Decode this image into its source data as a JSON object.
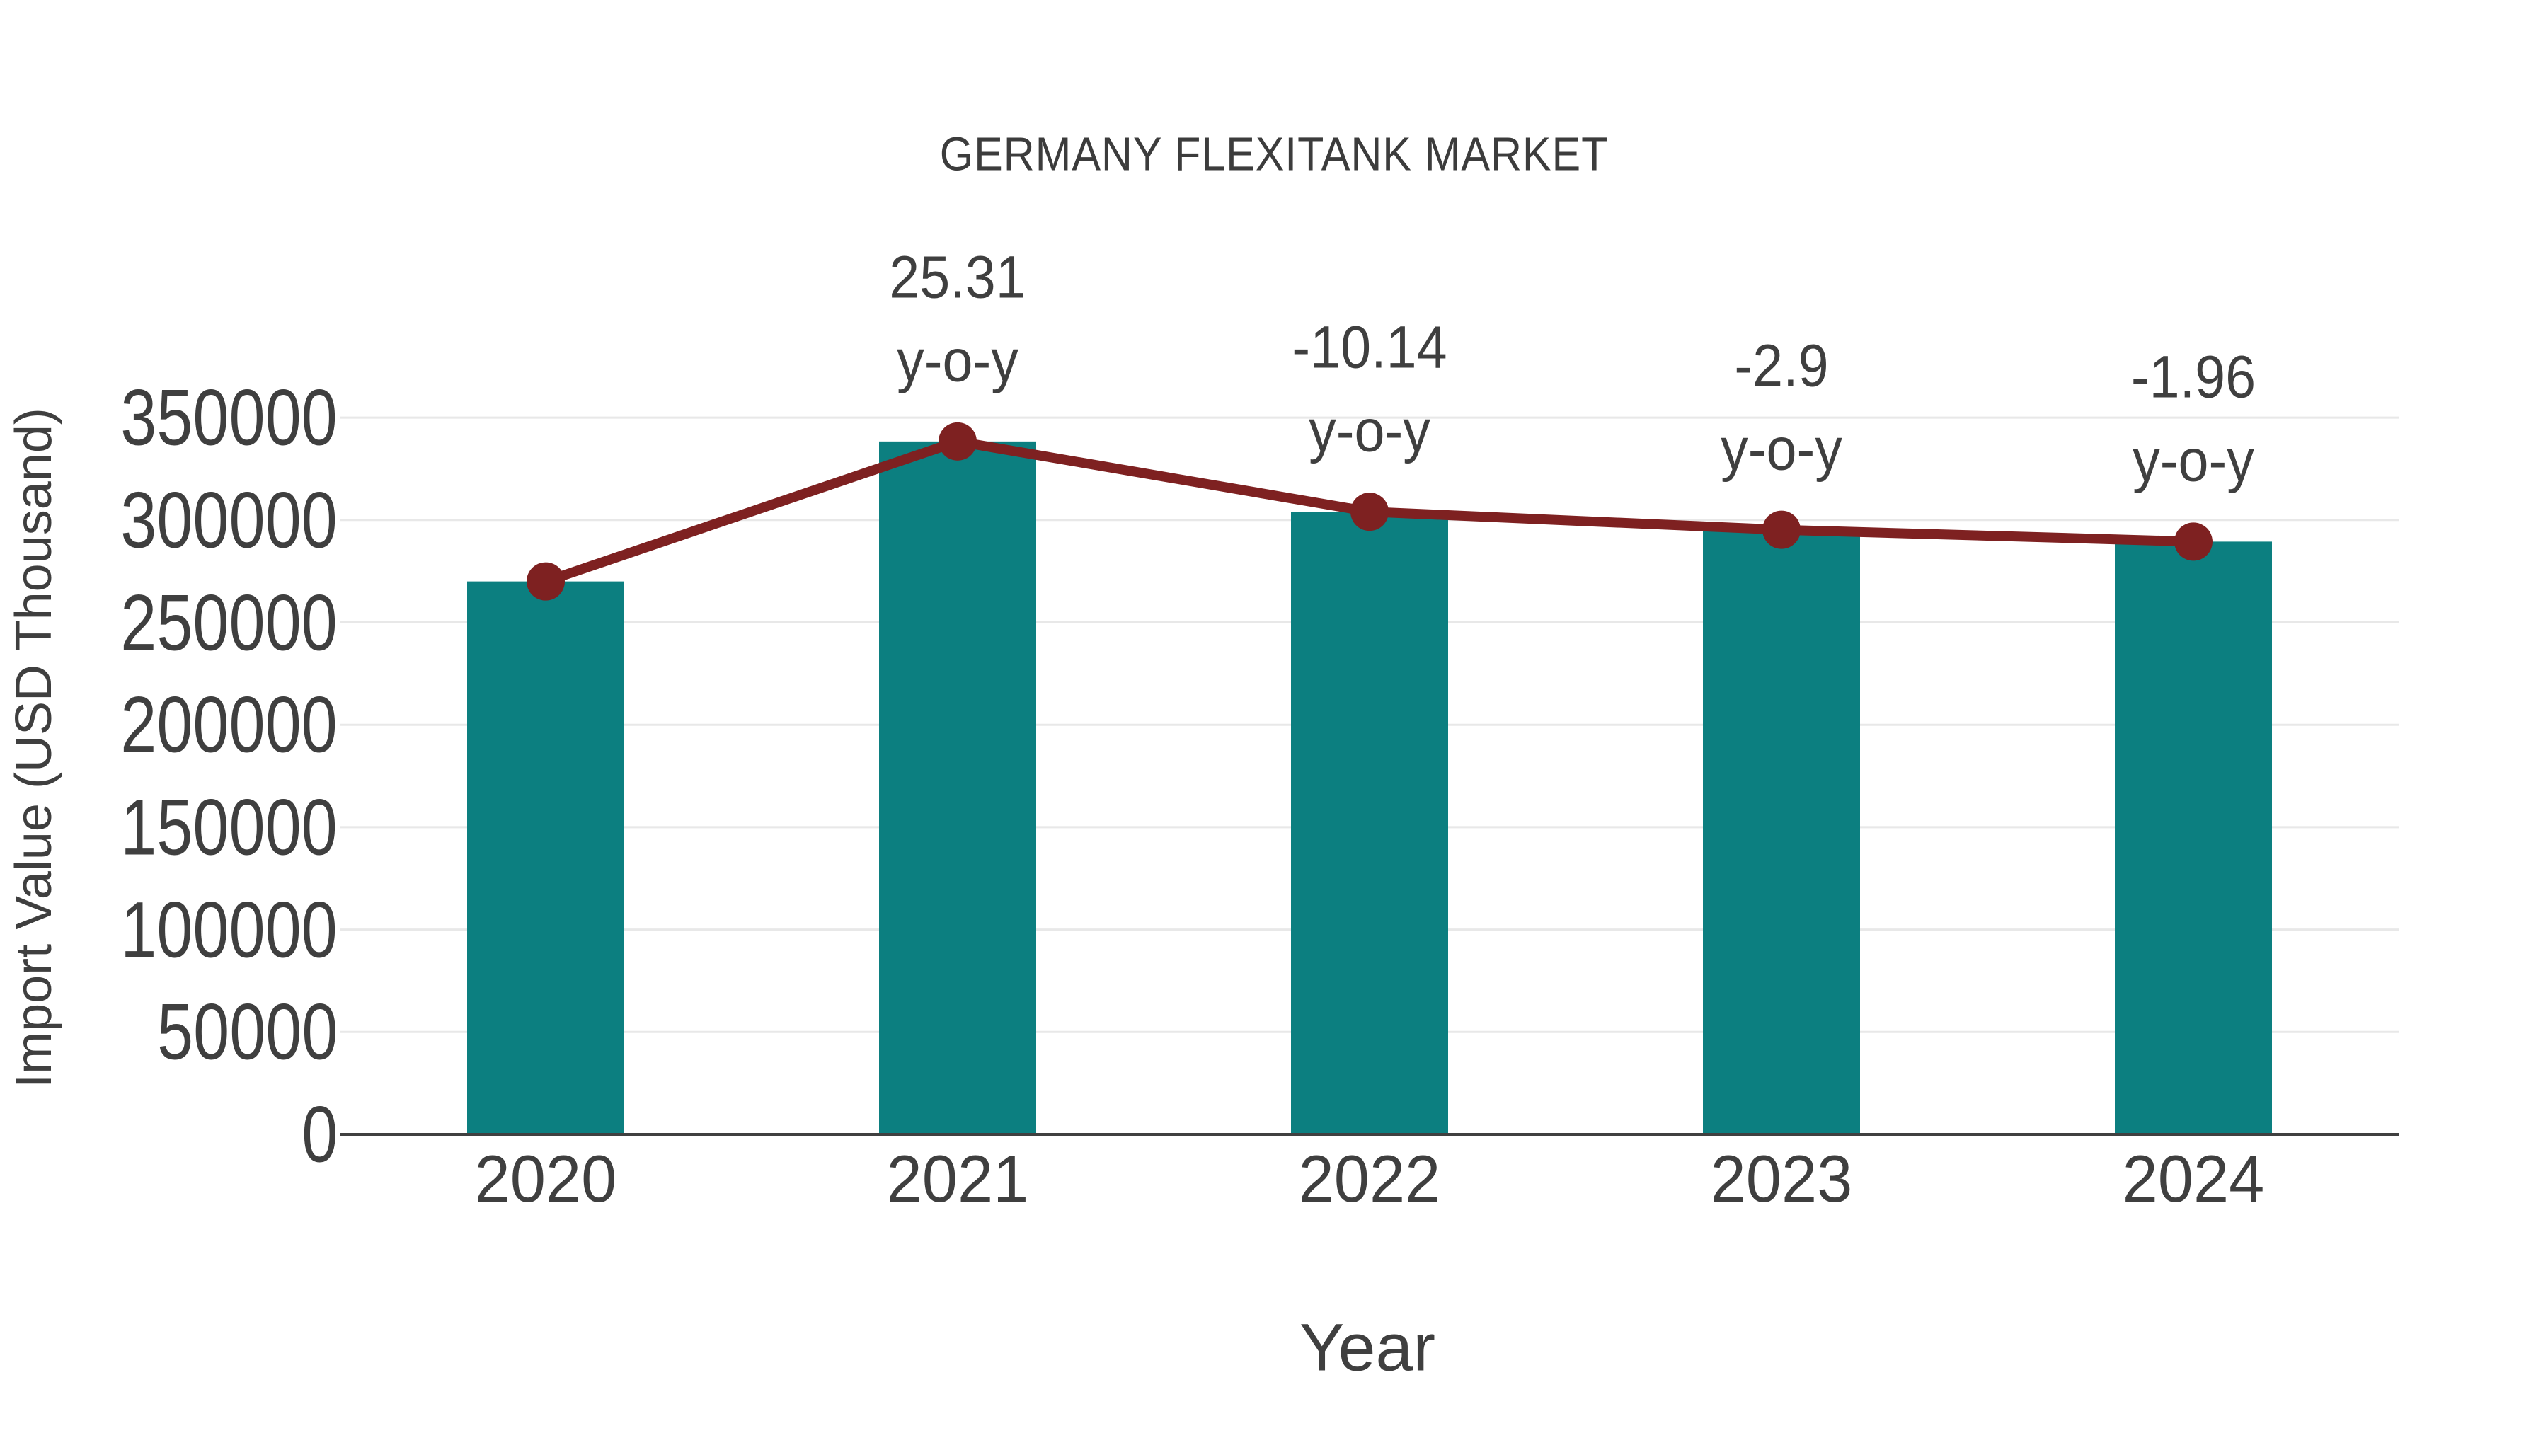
{
  "page": {
    "background": "#ffffff"
  },
  "chart_data": {
    "type": "bar",
    "subtype": "bar-with-line-overlay",
    "title": "GERMANY FLEXITANK MARKET",
    "xlabel": "Year",
    "ylabel": "Import Value (USD Thousand)",
    "categories": [
      "2020",
      "2021",
      "2022",
      "2023",
      "2024"
    ],
    "series": [
      {
        "name": "Import Value (USD Thousand)",
        "type": "bar",
        "color": "#0c7f80",
        "values": [
          270000,
          338337,
          304030,
          295213,
          289427
        ]
      },
      {
        "name": "y-o-y trend",
        "type": "line",
        "color": "#7e2121",
        "marker": "circle",
        "values": [
          270000,
          338337,
          304030,
          295213,
          289427
        ]
      }
    ],
    "annotations": [
      {
        "category": "2021",
        "value": "25.31",
        "suffix": "y-o-y"
      },
      {
        "category": "2022",
        "value": "-10.14",
        "suffix": "y-o-y"
      },
      {
        "category": "2023",
        "value": "-2.9",
        "suffix": "y-o-y"
      },
      {
        "category": "2024",
        "value": "-1.96",
        "suffix": "y-o-y"
      }
    ],
    "yticks": [
      0,
      50000,
      100000,
      150000,
      200000,
      250000,
      300000,
      350000
    ],
    "ylim": [
      0,
      362000
    ],
    "grid": true,
    "legend": "none",
    "colors": {
      "bar": "#0c7f80",
      "line": "#7e2121",
      "grid": "#e8e8e8",
      "axis": "#404040",
      "text": "#3f3f3f",
      "title": "#3c3c3c"
    }
  }
}
